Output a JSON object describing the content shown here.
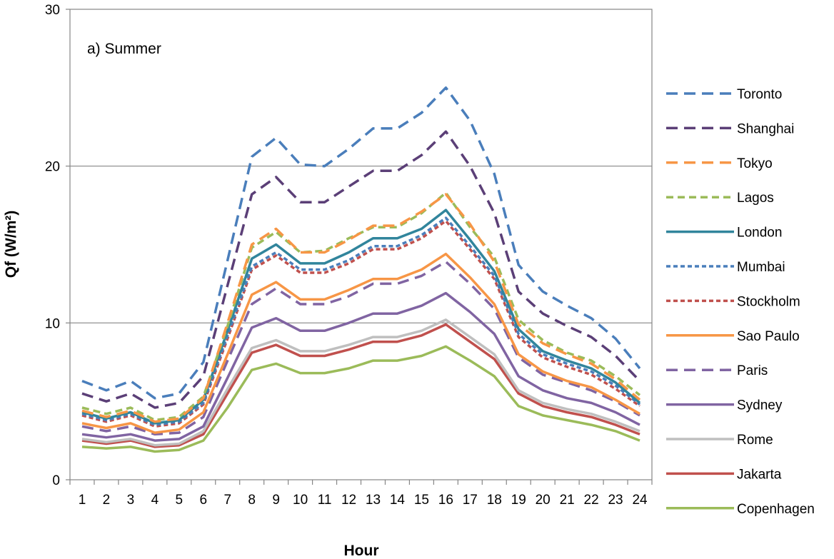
{
  "chart_data": {
    "type": "line",
    "annotation": "a) Summer",
    "xlabel": "Hour",
    "ylabel": "Qf (W/m²)",
    "ylim": [
      0,
      30
    ],
    "yticks": [
      0,
      10,
      20,
      30
    ],
    "grid": "horizontal major",
    "legend_position": "right",
    "categories": [
      "1",
      "2",
      "3",
      "4",
      "5",
      "6",
      "7",
      "8",
      "9",
      "10",
      "11",
      "12",
      "13",
      "14",
      "15",
      "16",
      "17",
      "18",
      "19",
      "20",
      "21",
      "22",
      "23",
      "24"
    ],
    "series": [
      {
        "name": "Toronto",
        "color": "#4a7ebb",
        "dash": "long-dash",
        "values": [
          6.3,
          5.7,
          6.3,
          5.2,
          5.5,
          7.5,
          14.0,
          20.6,
          21.8,
          20.1,
          20.0,
          21.1,
          22.4,
          22.4,
          23.4,
          25.0,
          22.9,
          19.5,
          13.7,
          12.0,
          11.1,
          10.3,
          9.0,
          7.1
        ]
      },
      {
        "name": "Shanghai",
        "color": "#5b3f77",
        "dash": "long-dash",
        "values": [
          5.5,
          5.0,
          5.5,
          4.6,
          4.9,
          6.6,
          12.4,
          18.2,
          19.3,
          17.7,
          17.7,
          18.7,
          19.7,
          19.7,
          20.7,
          22.2,
          20.0,
          17.0,
          12.0,
          10.6,
          9.8,
          9.1,
          7.9,
          6.3
        ]
      },
      {
        "name": "Tokyo",
        "color": "#f79646",
        "dash": "long-dash",
        "values": [
          4.4,
          4.0,
          4.4,
          3.7,
          3.9,
          5.2,
          10.0,
          15.0,
          16.0,
          14.5,
          14.5,
          15.3,
          16.2,
          16.2,
          17.1,
          18.2,
          16.3,
          13.9,
          9.9,
          8.7,
          8.0,
          7.4,
          6.4,
          5.1
        ]
      },
      {
        "name": "Lagos",
        "color": "#9bbb59",
        "dash": "dash",
        "values": [
          4.6,
          4.2,
          4.6,
          3.8,
          4.0,
          5.3,
          9.8,
          14.8,
          15.8,
          14.5,
          14.6,
          15.4,
          16.1,
          16.1,
          17.0,
          18.3,
          16.1,
          14.2,
          10.2,
          8.9,
          8.1,
          7.6,
          6.6,
          5.4
        ]
      },
      {
        "name": "London",
        "color": "#31859c",
        "dash": "solid",
        "values": [
          4.3,
          3.9,
          4.3,
          3.6,
          3.8,
          5.1,
          9.5,
          14.1,
          15.0,
          13.8,
          13.8,
          14.5,
          15.4,
          15.4,
          16.0,
          17.2,
          15.3,
          13.3,
          9.6,
          8.2,
          7.6,
          7.1,
          6.2,
          4.9
        ]
      },
      {
        "name": "Mumbai",
        "color": "#4a7ebb",
        "dash": "short-dash",
        "values": [
          4.2,
          3.8,
          4.2,
          3.5,
          3.7,
          4.9,
          9.2,
          13.6,
          14.5,
          13.4,
          13.4,
          14.0,
          14.9,
          14.9,
          15.6,
          16.7,
          14.9,
          13.0,
          9.3,
          8.0,
          7.4,
          6.9,
          6.0,
          4.8
        ]
      },
      {
        "name": "Stockholm",
        "color": "#c0504d",
        "dash": "short-dash",
        "values": [
          4.1,
          3.7,
          4.1,
          3.4,
          3.6,
          4.8,
          9.0,
          13.4,
          14.3,
          13.2,
          13.2,
          13.8,
          14.7,
          14.7,
          15.4,
          16.5,
          14.7,
          12.8,
          9.1,
          7.8,
          7.2,
          6.7,
          5.8,
          4.7
        ]
      },
      {
        "name": "Sao Paulo",
        "color": "#f79646",
        "dash": "solid",
        "values": [
          3.6,
          3.3,
          3.6,
          3.0,
          3.2,
          4.3,
          8.0,
          11.8,
          12.6,
          11.5,
          11.5,
          12.1,
          12.8,
          12.8,
          13.4,
          14.4,
          12.9,
          11.2,
          8.0,
          6.9,
          6.3,
          5.9,
          5.1,
          4.2
        ]
      },
      {
        "name": "Paris",
        "color": "#8064a2",
        "dash": "long-dash",
        "values": [
          3.4,
          3.1,
          3.4,
          2.9,
          3.0,
          4.0,
          7.6,
          11.2,
          12.2,
          11.2,
          11.2,
          11.7,
          12.5,
          12.5,
          13.0,
          13.9,
          12.5,
          10.9,
          7.8,
          6.7,
          6.2,
          5.7,
          5.0,
          4.1
        ]
      },
      {
        "name": "Sydney",
        "color": "#8064a2",
        "dash": "solid",
        "values": [
          2.9,
          2.7,
          2.9,
          2.5,
          2.6,
          3.4,
          6.5,
          9.7,
          10.3,
          9.5,
          9.5,
          10.0,
          10.6,
          10.6,
          11.1,
          11.9,
          10.7,
          9.3,
          6.6,
          5.7,
          5.2,
          4.9,
          4.3,
          3.5
        ]
      },
      {
        "name": "Rome",
        "color": "#bfbfbf",
        "dash": "solid",
        "values": [
          2.6,
          2.4,
          2.6,
          2.2,
          2.3,
          3.1,
          5.8,
          8.4,
          8.9,
          8.2,
          8.2,
          8.6,
          9.1,
          9.1,
          9.5,
          10.2,
          9.1,
          8.0,
          5.7,
          4.9,
          4.5,
          4.2,
          3.7,
          3.1
        ]
      },
      {
        "name": "Jakarta",
        "color": "#c0504d",
        "dash": "solid",
        "values": [
          2.5,
          2.3,
          2.5,
          2.1,
          2.2,
          2.9,
          5.5,
          8.1,
          8.6,
          7.9,
          7.9,
          8.3,
          8.8,
          8.8,
          9.2,
          9.9,
          8.8,
          7.7,
          5.5,
          4.7,
          4.3,
          4.0,
          3.5,
          2.9
        ]
      },
      {
        "name": "Copenhagen",
        "color": "#9bbb59",
        "dash": "solid",
        "values": [
          2.1,
          2.0,
          2.1,
          1.8,
          1.9,
          2.5,
          4.6,
          7.0,
          7.4,
          6.8,
          6.8,
          7.1,
          7.6,
          7.6,
          7.9,
          8.5,
          7.6,
          6.6,
          4.7,
          4.1,
          3.8,
          3.5,
          3.1,
          2.5
        ]
      }
    ]
  }
}
